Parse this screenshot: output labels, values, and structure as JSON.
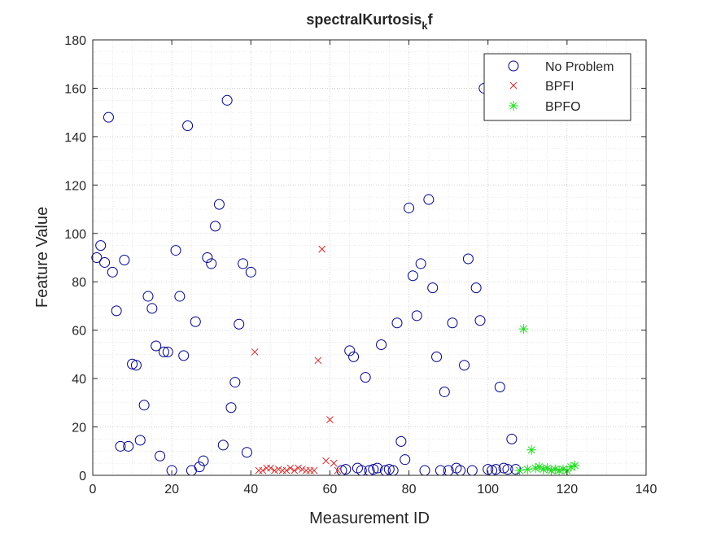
{
  "chart_data": {
    "type": "scatter",
    "title": "spectralKurtosis",
    "title_subscript": "k",
    "title_suffix": "f",
    "xlabel": "Measurement ID",
    "ylabel": "Feature Value",
    "xlim": [
      0,
      140
    ],
    "ylim": [
      0,
      180
    ],
    "xticks": [
      0,
      20,
      40,
      60,
      80,
      100,
      120,
      140
    ],
    "yticks": [
      0,
      20,
      40,
      60,
      80,
      100,
      120,
      140,
      160,
      180
    ],
    "grid": true,
    "minor_grid": true,
    "legend_location": "top-right",
    "series": [
      {
        "name": "No Problem",
        "marker": "circle",
        "color": "#00008B",
        "points": [
          [
            1,
            90
          ],
          [
            2,
            95
          ],
          [
            3,
            88
          ],
          [
            4,
            148
          ],
          [
            5,
            84
          ],
          [
            6,
            68
          ],
          [
            7,
            12
          ],
          [
            8,
            89
          ],
          [
            9,
            12
          ],
          [
            10,
            46
          ],
          [
            11,
            45.5
          ],
          [
            12,
            14.5
          ],
          [
            13,
            29
          ],
          [
            14,
            74
          ],
          [
            15,
            69
          ],
          [
            16,
            53.5
          ],
          [
            17,
            8
          ],
          [
            18,
            51
          ],
          [
            19,
            51
          ],
          [
            20,
            2
          ],
          [
            21,
            93
          ],
          [
            22,
            74
          ],
          [
            23,
            49.5
          ],
          [
            24,
            144.5
          ],
          [
            25,
            2
          ],
          [
            26,
            63.5
          ],
          [
            27,
            3.5
          ],
          [
            28,
            6
          ],
          [
            29,
            90
          ],
          [
            30,
            87.5
          ],
          [
            31,
            103
          ],
          [
            32,
            112
          ],
          [
            33,
            12.5
          ],
          [
            34,
            155
          ],
          [
            35,
            28
          ],
          [
            36,
            38.5
          ],
          [
            37,
            62.5
          ],
          [
            38,
            87.5
          ],
          [
            39,
            9.5
          ],
          [
            40,
            84
          ],
          [
            63,
            2
          ],
          [
            64,
            2.5
          ],
          [
            65,
            51.5
          ],
          [
            66,
            49
          ],
          [
            67,
            3
          ],
          [
            68,
            2
          ],
          [
            69,
            40.5
          ],
          [
            70,
            2
          ],
          [
            71,
            2.5
          ],
          [
            72,
            3
          ],
          [
            73,
            54
          ],
          [
            74,
            2
          ],
          [
            75,
            2.5
          ],
          [
            76,
            2
          ],
          [
            77,
            63
          ],
          [
            78,
            14
          ],
          [
            79,
            6.5
          ],
          [
            80,
            110.5
          ],
          [
            81,
            82.5
          ],
          [
            82,
            66
          ],
          [
            83,
            87.5
          ],
          [
            84,
            2
          ],
          [
            85,
            114
          ],
          [
            86,
            77.5
          ],
          [
            87,
            49
          ],
          [
            88,
            2
          ],
          [
            89,
            34.5
          ],
          [
            90,
            2
          ],
          [
            91,
            63
          ],
          [
            92,
            3
          ],
          [
            93,
            2
          ],
          [
            94,
            45.5
          ],
          [
            95,
            89.5
          ],
          [
            96,
            2
          ],
          [
            97,
            77.5
          ],
          [
            98,
            64
          ],
          [
            99,
            160
          ],
          [
            100,
            2.5
          ],
          [
            101,
            2
          ],
          [
            102,
            2.5
          ],
          [
            103,
            36.5
          ],
          [
            104,
            3
          ],
          [
            105,
            2.5
          ],
          [
            106,
            15
          ],
          [
            107,
            2.5
          ]
        ]
      },
      {
        "name": "BPFI",
        "marker": "x",
        "color": "#D62728",
        "points": [
          [
            41,
            51
          ],
          [
            42,
            2
          ],
          [
            43,
            2
          ],
          [
            44,
            3
          ],
          [
            45,
            3
          ],
          [
            46,
            2
          ],
          [
            47,
            2.5
          ],
          [
            48,
            2
          ],
          [
            49,
            2
          ],
          [
            50,
            3
          ],
          [
            51,
            2
          ],
          [
            52,
            3
          ],
          [
            53,
            2.5
          ],
          [
            54,
            2
          ],
          [
            55,
            2
          ],
          [
            56,
            2
          ],
          [
            57,
            47.5
          ],
          [
            58,
            93.5
          ],
          [
            59,
            6
          ],
          [
            60,
            23
          ],
          [
            61,
            5
          ],
          [
            62,
            2
          ]
        ]
      },
      {
        "name": "BPFO",
        "marker": "asterisk",
        "color": "#22DD22",
        "points": [
          [
            108,
            2
          ],
          [
            109,
            60.5
          ],
          [
            110,
            2.5
          ],
          [
            111,
            10.5
          ],
          [
            112,
            3
          ],
          [
            113,
            3.5
          ],
          [
            114,
            2.5
          ],
          [
            115,
            3
          ],
          [
            116,
            2
          ],
          [
            117,
            2.5
          ],
          [
            118,
            2
          ],
          [
            119,
            2.5
          ],
          [
            120,
            2
          ],
          [
            121,
            3.5
          ],
          [
            122,
            4
          ]
        ]
      }
    ]
  }
}
